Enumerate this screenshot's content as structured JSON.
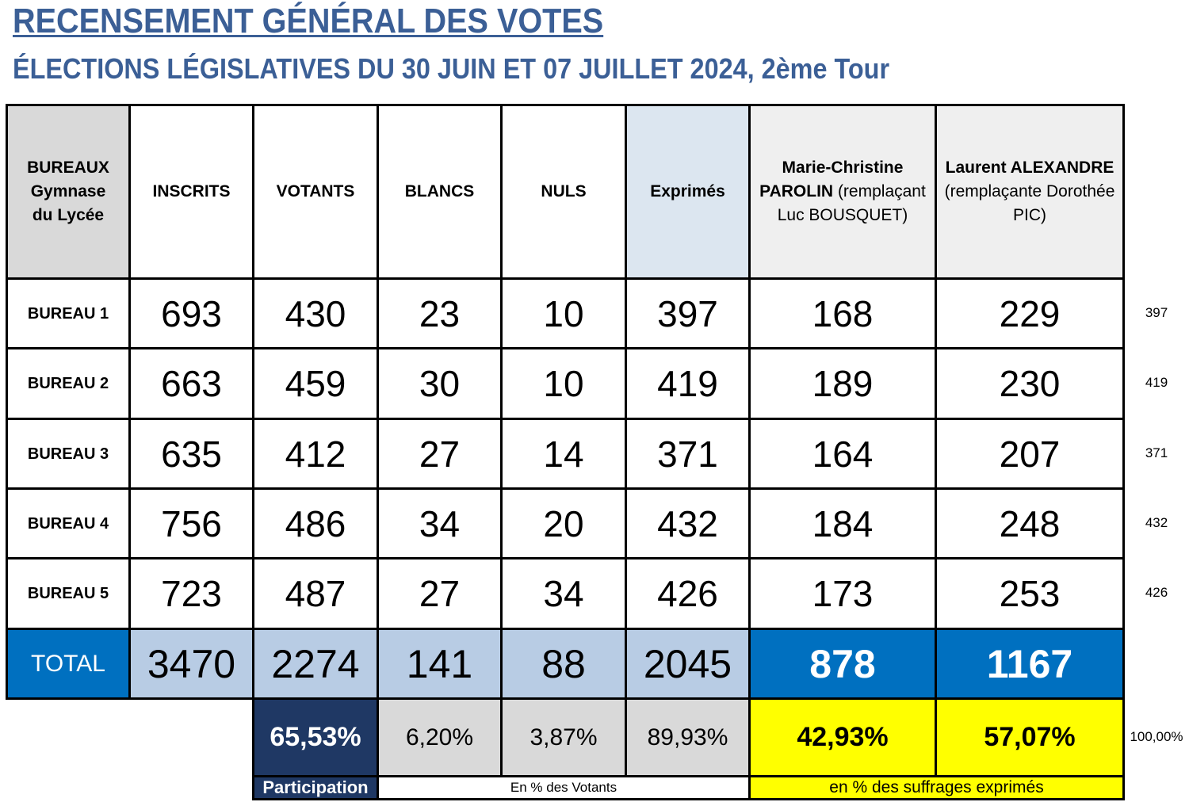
{
  "title": "RECENSEMENT GÉNÉRAL DES VOTES",
  "subtitle": "ÉLECTIONS LÉGISLATIVES DU 30 JUIN ET 07 JUILLET 2024, 2ème Tour",
  "headers": {
    "bureaux": [
      "BUREAUX",
      "Gymnase",
      "du Lycée"
    ],
    "inscrits": "INSCRITS",
    "votants": "VOTANTS",
    "blancs": "BLANCS",
    "nuls": "NULS",
    "exprimes": "Exprimés",
    "cand1_name1": "Marie-Christine",
    "cand1_name2": "PAROLIN",
    "cand1_rest1": " (remplaçant",
    "cand1_rest2": "Luc BOUSQUET)",
    "cand2_name": "Laurent ALEXANDRE",
    "cand2_rest1": "(remplaçante Dorothée",
    "cand2_rest2": "PIC)"
  },
  "rows": [
    {
      "bureau": "BUREAU 1",
      "inscrits": "693",
      "votants": "430",
      "blancs": "23",
      "nuls": "10",
      "exprimes": "397",
      "cand1": "168",
      "cand2": "229",
      "check": "397"
    },
    {
      "bureau": "BUREAU 2",
      "inscrits": "663",
      "votants": "459",
      "blancs": "30",
      "nuls": "10",
      "exprimes": "419",
      "cand1": "189",
      "cand2": "230",
      "check": "419"
    },
    {
      "bureau": "BUREAU 3",
      "inscrits": "635",
      "votants": "412",
      "blancs": "27",
      "nuls": "14",
      "exprimes": "371",
      "cand1": "164",
      "cand2": "207",
      "check": "371"
    },
    {
      "bureau": "BUREAU 4",
      "inscrits": "756",
      "votants": "486",
      "blancs": "34",
      "nuls": "20",
      "exprimes": "432",
      "cand1": "184",
      "cand2": "248",
      "check": "432"
    },
    {
      "bureau": "BUREAU 5",
      "inscrits": "723",
      "votants": "487",
      "blancs": "27",
      "nuls": "34",
      "exprimes": "426",
      "cand1": "173",
      "cand2": "253",
      "check": "426"
    }
  ],
  "total": {
    "label": "TOTAL",
    "inscrits": "3470",
    "votants": "2274",
    "blancs": "141",
    "nuls": "88",
    "exprimes": "2045",
    "cand1": "878",
    "cand2": "1167"
  },
  "percentages": {
    "participation": "65,53%",
    "blancs": "6,20%",
    "nuls": "3,87%",
    "exprimes": "89,93%",
    "cand1": "42,93%",
    "cand2": "57,07%",
    "check": "100,00%"
  },
  "captions": {
    "participation": "Participation",
    "votants": "En % des Votants",
    "exprimes": "en % des suffrages exprimés"
  },
  "colors": {
    "title": "#3b5f96",
    "header_grey": "#d9d9d9",
    "header_light": "#efefef",
    "exprimes_header": "#dce6f0",
    "total_blue": "#0070c0",
    "total_light": "#b8cce4",
    "participation_dark": "#1f3864",
    "pct_grey": "#d9d9d9",
    "yellow": "#ffff00"
  }
}
